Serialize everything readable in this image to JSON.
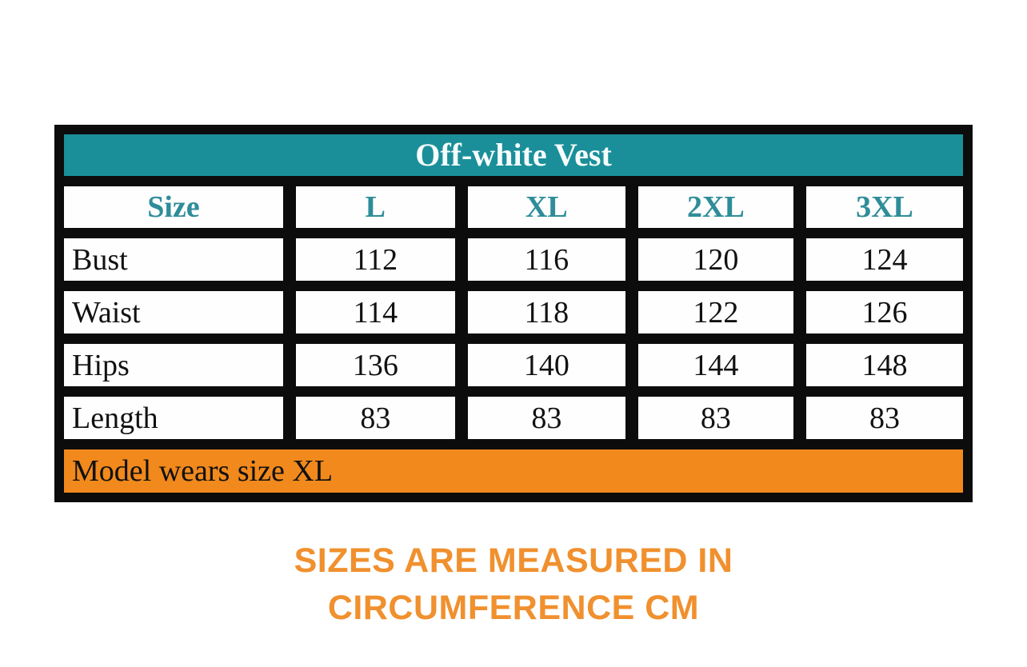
{
  "size_chart": {
    "title": "Off-white Vest",
    "columns": [
      "Size",
      "L",
      "XL",
      "2XL",
      "3XL"
    ],
    "rows": [
      {
        "label": "Bust",
        "values": [
          "112",
          "116",
          "120",
          "124"
        ]
      },
      {
        "label": "Waist",
        "values": [
          "114",
          "118",
          "122",
          "126"
        ]
      },
      {
        "label": "Hips",
        "values": [
          "136",
          "140",
          "144",
          "148"
        ]
      },
      {
        "label": "Length",
        "values": [
          "83",
          "83",
          "83",
          "83"
        ]
      }
    ],
    "footer_note": "Model wears size XL"
  },
  "caption": {
    "line1": "SIZES ARE MEASURED IN",
    "line2": "CIRCUMFERENCE CM"
  },
  "colors": {
    "teal_banner": "#1a8f99",
    "header_text_teal": "#2e8d99",
    "orange_row": "#f1891c",
    "caption_orange": "#f0902e",
    "frame_black": "#0c0c0c",
    "cell_white": "#fefefe"
  },
  "chart_data": {
    "type": "table",
    "title": "Off-white Vest",
    "columns": [
      "Size",
      "L",
      "XL",
      "2XL",
      "3XL"
    ],
    "rows": [
      [
        "Bust",
        112,
        116,
        120,
        124
      ],
      [
        "Waist",
        114,
        118,
        122,
        126
      ],
      [
        "Hips",
        136,
        140,
        144,
        148
      ],
      [
        "Length",
        83,
        83,
        83,
        83
      ]
    ],
    "footer": "Model wears size XL",
    "units": "circumference cm",
    "legend_position": "none",
    "grid": "thick black separators"
  }
}
